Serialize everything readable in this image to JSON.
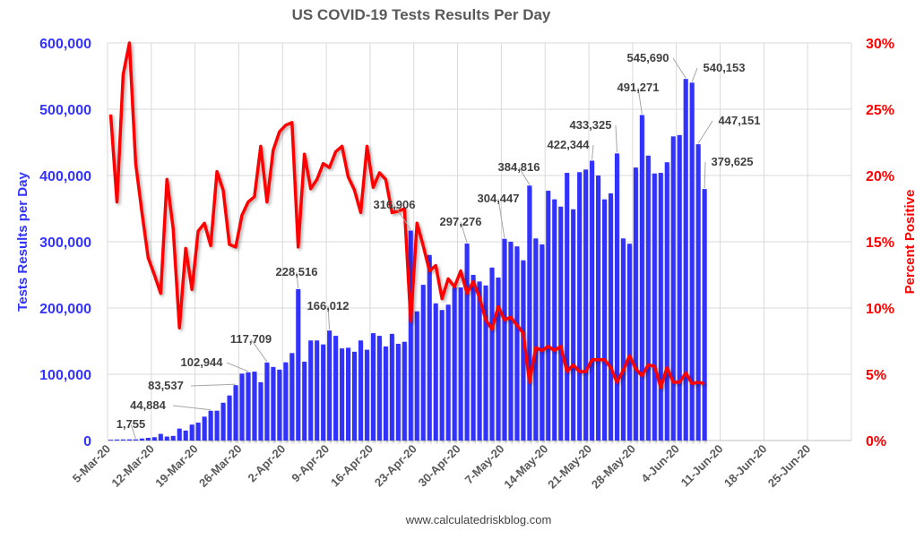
{
  "chart_data": {
    "type": "bar+line",
    "title": "US COVID-19 Tests Results Per Day",
    "ylabel": "Tests Results per Day",
    "y2label": "Percent Positive",
    "footer": "www.calculatedriskblog.com",
    "x_start": "5-Mar-20",
    "x_end": "2-Jul-20",
    "x_tick_labels": [
      "5-Mar-20",
      "12-Mar-20",
      "19-Mar-20",
      "26-Mar-20",
      "2-Apr-20",
      "9-Apr-20",
      "16-Apr-20",
      "23-Apr-20",
      "30-Apr-20",
      "7-May-20",
      "14-May-20",
      "21-May-20",
      "28-May-20",
      "4-Jun-20",
      "11-Jun-20",
      "18-Jun-20",
      "25-Jun-20"
    ],
    "ylim": [
      0,
      600000
    ],
    "y_tick_labels": [
      "0",
      "100,000",
      "200,000",
      "300,000",
      "400,000",
      "500,000",
      "600,000"
    ],
    "y2lim": [
      0,
      30
    ],
    "y2_tick_labels": [
      "0%",
      "5%",
      "10%",
      "15%",
      "20%",
      "25%",
      "30%"
    ],
    "grid": true,
    "colors": {
      "bars": "#3333ff",
      "line": "#ff0000",
      "left_axis": "#3333ff",
      "right_axis": "#ff0000"
    },
    "series": [
      {
        "type": "bar",
        "axis": "left",
        "values": [
          1200,
          1500,
          1600,
          1700,
          1755,
          3000,
          4000,
          5000,
          10000,
          6000,
          7000,
          18000,
          15000,
          24000,
          27000,
          36000,
          44884,
          45000,
          57000,
          68000,
          83537,
          101000,
          102944,
          104000,
          88000,
          117709,
          111000,
          107000,
          118000,
          132000,
          228516,
          119000,
          151000,
          151000,
          145000,
          166012,
          158000,
          139000,
          140000,
          134000,
          151000,
          137000,
          162000,
          158000,
          142000,
          161000,
          146000,
          149000,
          316906,
          195000,
          235000,
          280000,
          207000,
          197000,
          205000,
          231000,
          231000,
          297276,
          250000,
          240000,
          234000,
          261000,
          246000,
          304447,
          300000,
          293000,
          272000,
          384816,
          305000,
          296000,
          377000,
          364000,
          353000,
          404000,
          349000,
          405000,
          409000,
          422344,
          400000,
          364000,
          373000,
          433325,
          305000,
          297000,
          412000,
          491271,
          430000,
          403000,
          404000,
          420000,
          459000,
          461000,
          545690,
          540153,
          447151,
          379625
        ]
      },
      {
        "type": "line",
        "axis": "right",
        "values": [
          24.6,
          18.0,
          27.6,
          30.0,
          20.9,
          17.2,
          13.8,
          12.5,
          11.1,
          19.7,
          16.0,
          8.5,
          14.5,
          11.4,
          15.8,
          16.4,
          14.7,
          20.3,
          18.9,
          14.8,
          14.6,
          17.0,
          18.0,
          18.4,
          22.2,
          18.0,
          21.9,
          23.3,
          23.8,
          24.0,
          14.6,
          21.6,
          19.0,
          19.7,
          20.9,
          20.6,
          21.8,
          22.2,
          19.9,
          18.9,
          17.2,
          22.2,
          19.1,
          20.2,
          19.7,
          17.2,
          17.3,
          17.5,
          9.0,
          16.4,
          14.7,
          12.8,
          13.2,
          10.7,
          12.2,
          11.6,
          12.8,
          11.1,
          12.0,
          10.8,
          9.1,
          8.4,
          10.1,
          9.1,
          9.3,
          8.7,
          8.1,
          4.4,
          7.0,
          6.8,
          7.1,
          6.8,
          7.1,
          5.2,
          5.7,
          5.2,
          5.2,
          6.1,
          6.1,
          6.1,
          5.5,
          4.4,
          5.3,
          6.4,
          5.4,
          4.9,
          5.7,
          5.6,
          4.0,
          5.5,
          4.4,
          4.4,
          5.1,
          4.3,
          4.4,
          4.3
        ]
      }
    ],
    "data_labels": [
      {
        "index": 4,
        "text": "1,755"
      },
      {
        "index": 16,
        "text": "44,884"
      },
      {
        "index": 20,
        "text": "83,537"
      },
      {
        "index": 22,
        "text": "102,944"
      },
      {
        "index": 25,
        "text": "117,709"
      },
      {
        "index": 30,
        "text": "228,516"
      },
      {
        "index": 35,
        "text": "166,012"
      },
      {
        "index": 48,
        "text": "316,906"
      },
      {
        "index": 57,
        "text": "297,276"
      },
      {
        "index": 63,
        "text": "304,447"
      },
      {
        "index": 67,
        "text": "384,816"
      },
      {
        "index": 77,
        "text": "422,344"
      },
      {
        "index": 81,
        "text": "433,325"
      },
      {
        "index": 85,
        "text": "491,271"
      },
      {
        "index": 92,
        "text": "545,690"
      },
      {
        "index": 93,
        "text": "540,153"
      },
      {
        "index": 94,
        "text": "447,151"
      },
      {
        "index": 95,
        "text": "379,625"
      }
    ]
  }
}
